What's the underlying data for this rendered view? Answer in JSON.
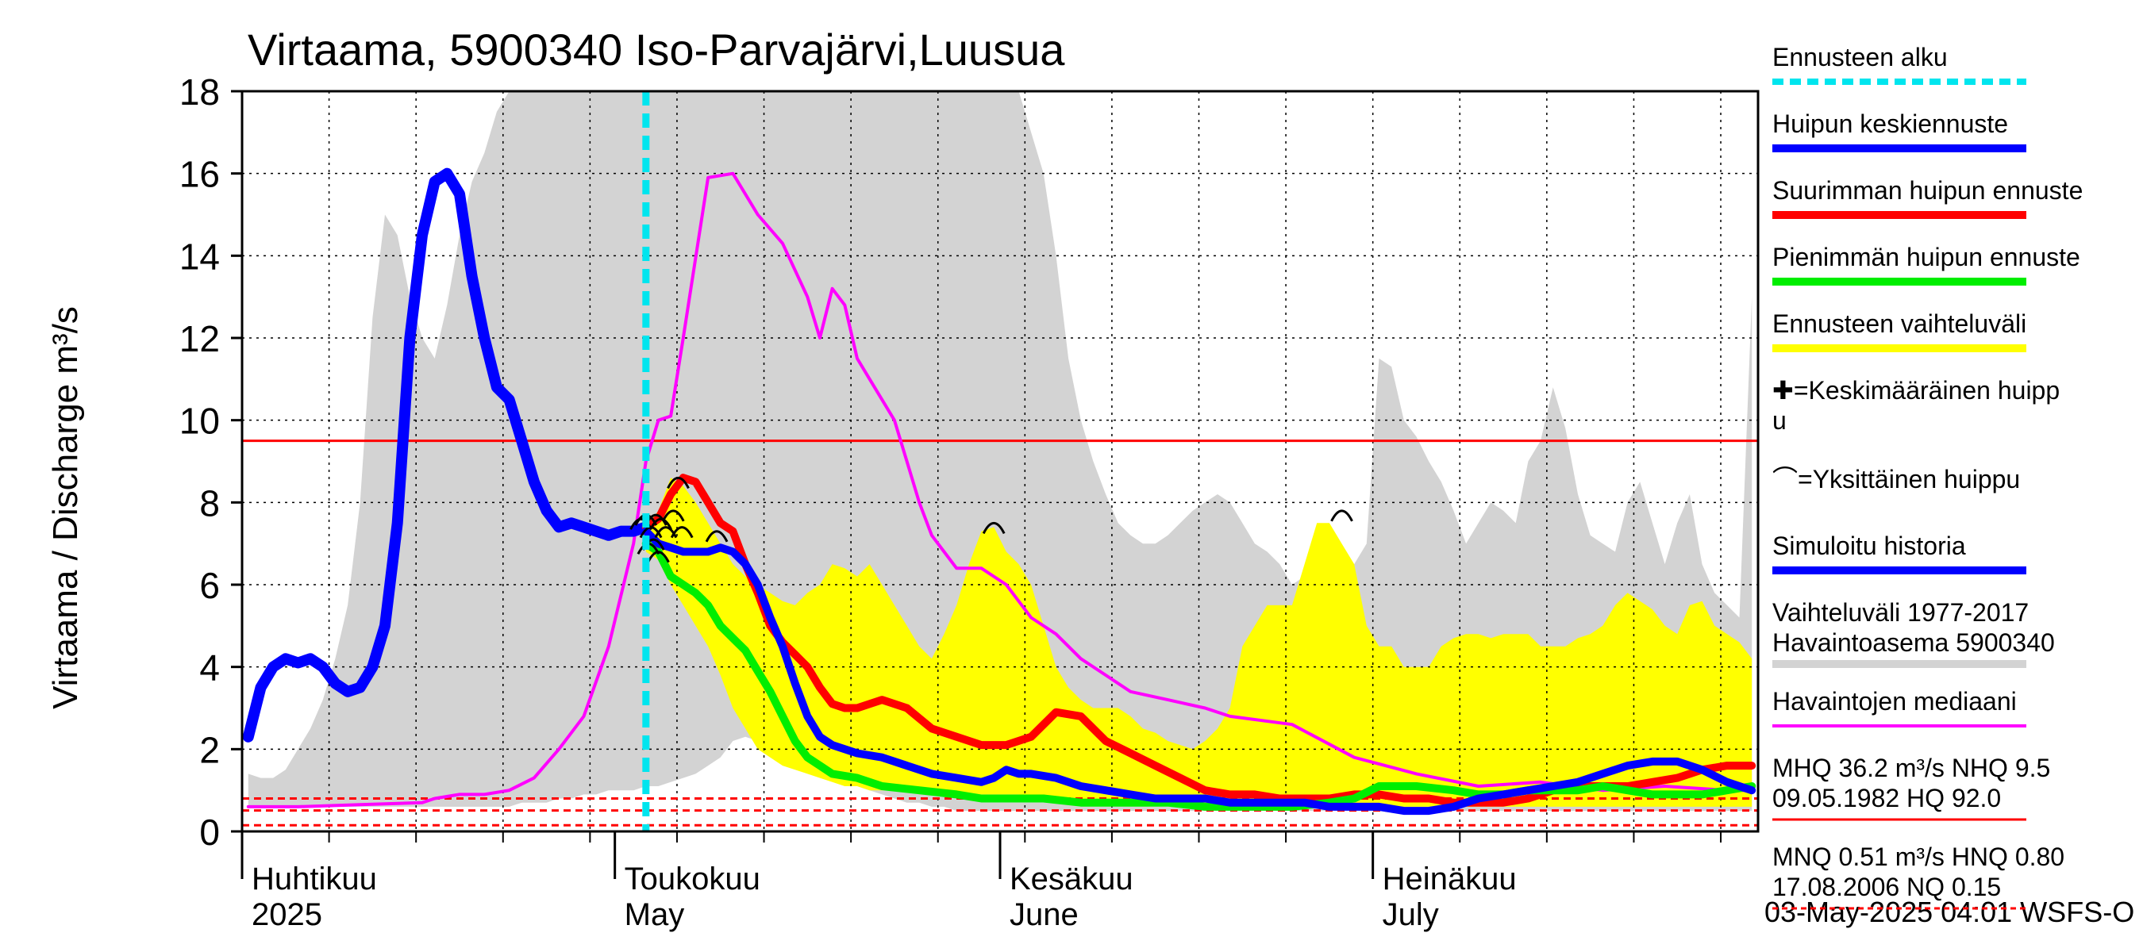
{
  "chart_data": {
    "type": "line",
    "title": "Virtaama, 5900340 Iso-Parvajärvi,Luusua",
    "ylabel": "Virtaama / Discharge    m³/s",
    "ylim": [
      0,
      18
    ],
    "yticks": [
      0,
      2,
      4,
      6,
      8,
      10,
      12,
      14,
      16,
      18
    ],
    "xlim": [
      "2025-04-01",
      "2025-07-31"
    ],
    "x_month_labels": [
      {
        "date": "2025-04-01",
        "line1": "Huhtikuu",
        "line2": "2025"
      },
      {
        "date": "2025-05-01",
        "line1": "Toukokuu",
        "line2": "May"
      },
      {
        "date": "2025-06-01",
        "line1": "Kesäkuu",
        "line2": "June"
      },
      {
        "date": "2025-07-01",
        "line1": "Heinäkuu",
        "line2": "July"
      }
    ],
    "forecast_start": "2025-05-03",
    "timestamp": "03-May-2025 04:01 WSFS-O",
    "legend": [
      {
        "label": "Ennusteen alku",
        "color": "#00e5ee",
        "style": "dashed"
      },
      {
        "label": "Huipun keskiennuste",
        "color": "#0000ff",
        "style": "thick"
      },
      {
        "label": "Suurimman huipun ennuste",
        "color": "#ff0000",
        "style": "thick"
      },
      {
        "label": "Pienimmän huipun ennuste",
        "color": "#00ee00",
        "style": "thick"
      },
      {
        "label": "Ennusteen vaihteluväli",
        "color": "#ffff00",
        "style": "thick"
      },
      {
        "label": "✚=Keskimääräinen huipp",
        "label2": "u",
        "color": "#000000",
        "style": "none"
      },
      {
        "label": "⌒=Yksittäinen huippu",
        "color": "#000000",
        "style": "none"
      },
      {
        "label": "Simuloitu historia",
        "color": "#0000ff",
        "style": "thick"
      },
      {
        "label": "Vaihteluväli 1977-2017",
        "label2": " Havaintoasema 5900340",
        "color": "#d3d3d3",
        "style": "thick"
      },
      {
        "label": "Havaintojen mediaani",
        "color": "#ff00ff",
        "style": "medium"
      },
      {
        "label": "MHQ 36.2 m³/s NHQ  9.5",
        "label2": "09.05.1982 HQ 92.0",
        "color": "#ff0000",
        "style": "thin"
      },
      {
        "label": "MNQ 0.51 m³/s HNQ 0.80",
        "label2": "17.08.2006 NQ 0.15",
        "color": "#ff0000",
        "style": "dotted"
      }
    ],
    "reference_lines": [
      {
        "name": "NHQ",
        "y": 9.5,
        "color": "#ff0000",
        "style": "solid"
      },
      {
        "name": "HNQ",
        "y": 0.8,
        "color": "#ff0000",
        "style": "dashed"
      },
      {
        "name": "MNQ",
        "y": 0.51,
        "color": "#ff0000",
        "style": "dashed"
      },
      {
        "name": "NQ",
        "y": 0.15,
        "color": "#ff0000",
        "style": "dashed"
      }
    ],
    "grey_band": {
      "x": [
        1,
        2,
        3,
        4,
        5,
        6,
        7,
        8,
        9,
        10,
        11,
        12,
        13,
        14,
        15,
        16,
        17,
        18,
        19,
        20,
        21,
        22,
        23,
        24,
        25,
        26,
        27,
        28,
        29,
        30,
        31,
        32,
        33,
        34,
        35,
        36,
        37,
        38,
        39,
        40,
        41,
        42,
        43,
        44,
        45,
        46,
        47,
        48,
        49,
        50,
        51,
        52,
        53,
        54,
        55,
        56,
        57,
        58,
        59,
        60,
        61,
        62,
        63,
        64,
        65,
        66,
        67,
        68,
        69,
        70,
        71,
        72,
        73,
        74,
        75,
        76,
        77,
        78,
        79,
        80,
        81,
        82,
        83,
        84,
        85,
        86,
        87,
        88,
        89,
        90,
        91,
        92,
        93,
        94,
        95,
        96,
        97,
        98,
        99,
        100,
        101,
        102,
        103,
        104,
        105,
        106,
        107,
        108,
        109,
        110,
        111,
        112,
        113,
        114,
        115,
        116,
        117,
        118,
        119,
        120,
        121,
        122
      ],
      "upper": [
        1.4,
        1.3,
        1.3,
        1.5,
        2.0,
        2.5,
        3.2,
        4.2,
        5.5,
        8.0,
        12.5,
        15.0,
        14.5,
        13.0,
        12.0,
        11.5,
        12.8,
        14.5,
        15.8,
        16.5,
        17.5,
        18,
        18,
        18,
        18,
        18,
        18,
        18,
        18,
        18,
        18,
        18,
        18,
        18,
        18,
        18,
        18,
        18,
        18,
        18,
        18,
        18,
        18,
        18,
        18,
        18,
        18,
        18,
        18,
        18,
        18,
        18,
        18,
        18,
        18,
        18,
        18,
        18,
        18,
        18,
        18,
        18,
        18,
        17,
        16,
        14,
        11.5,
        10.0,
        9.0,
        8.2,
        7.5,
        7.2,
        7.0,
        7.0,
        7.2,
        7.5,
        7.8,
        8.0,
        8.2,
        8.0,
        7.5,
        7.0,
        6.8,
        6.5,
        6.0,
        6.2,
        5.8,
        6.0,
        6.2,
        6.5,
        7.0,
        11.5,
        11.3,
        10.0,
        9.6,
        9.0,
        8.5,
        7.8,
        7.0,
        7.5,
        8.0,
        7.8,
        7.5,
        9.0,
        9.5,
        10.8,
        9.8,
        8.2,
        7.2,
        7.0,
        6.8,
        8.0,
        8.5,
        7.5,
        6.5,
        7.5,
        8.2,
        6.5,
        5.8,
        5.5,
        5.2,
        13.0
      ],
      "lower": [
        0.6,
        0.6,
        0.6,
        0.6,
        0.6,
        0.6,
        0.6,
        0.6,
        0.6,
        0.6,
        0.6,
        0.6,
        0.6,
        0.6,
        0.6,
        0.6,
        0.6,
        0.6,
        0.6,
        0.6,
        0.6,
        0.6,
        0.7,
        0.7,
        0.7,
        0.8,
        0.8,
        0.9,
        0.9,
        1.0,
        1.0,
        1.0,
        1.1,
        1.1,
        1.2,
        1.3,
        1.4,
        1.6,
        1.8,
        2.2,
        2.3,
        2.2,
        2.0,
        1.8,
        1.6,
        1.5,
        1.4,
        1.3,
        1.2,
        1.1,
        1.0,
        0.9,
        0.8,
        0.7,
        0.7,
        0.6,
        0.6,
        0.5,
        0.5,
        0.5,
        0.5,
        0.5,
        0.5,
        0.5,
        0.5,
        0.5,
        0.5,
        0.5,
        0.5,
        0.5,
        0.5,
        0.5,
        0.5,
        0.5,
        0.5,
        0.5,
        0.5,
        0.5,
        0.5,
        0.5,
        0.5,
        0.5,
        0.5,
        0.5,
        0.5,
        0.5,
        0.5,
        0.5,
        0.5,
        0.5,
        0.5,
        0.5,
        0.5,
        0.5,
        0.5,
        0.5,
        0.5,
        0.5,
        0.5,
        0.5,
        0.5,
        0.5,
        0.5,
        0.5,
        0.5,
        0.5,
        0.5,
        0.5,
        0.5,
        0.5,
        0.5,
        0.5,
        0.5,
        0.5,
        0.5,
        0.5,
        0.5,
        0.5,
        0.5,
        0.5,
        0.5,
        0.5
      ]
    },
    "yellow_band": {
      "x": [
        33,
        34,
        35,
        36,
        37,
        38,
        39,
        40,
        41,
        42,
        43,
        44,
        45,
        46,
        47,
        48,
        49,
        50,
        51,
        52,
        53,
        54,
        55,
        56,
        57,
        58,
        59,
        60,
        61,
        62,
        63,
        64,
        65,
        66,
        67,
        68,
        69,
        70,
        71,
        72,
        73,
        74,
        75,
        76,
        77,
        78,
        79,
        80,
        81,
        82,
        83,
        84,
        85,
        86,
        87,
        88,
        89,
        90,
        91,
        92,
        93,
        94,
        95,
        96,
        97,
        98,
        99,
        100,
        101,
        102,
        103,
        104,
        105,
        106,
        107,
        108,
        109,
        110,
        111,
        112,
        113,
        114,
        115,
        116,
        117,
        118,
        119,
        120,
        121,
        122
      ],
      "upper": [
        7.4,
        7.8,
        8.6,
        8.4,
        8.0,
        7.5,
        7.0,
        6.5,
        6.2,
        6.0,
        5.8,
        5.6,
        5.5,
        5.8,
        6.0,
        6.5,
        6.4,
        6.2,
        6.5,
        6.0,
        5.5,
        5.0,
        4.5,
        4.2,
        4.8,
        5.5,
        6.5,
        7.3,
        7.4,
        6.8,
        6.5,
        6.0,
        5.0,
        4.0,
        3.5,
        3.2,
        3.0,
        3.0,
        3.0,
        2.8,
        2.5,
        2.4,
        2.2,
        2.1,
        2.0,
        2.2,
        2.5,
        3.0,
        4.5,
        5.0,
        5.5,
        5.5,
        5.5,
        6.5,
        7.5,
        7.5,
        7.0,
        6.5,
        5.0,
        4.5,
        4.5,
        4.0,
        4.0,
        4.0,
        4.5,
        4.7,
        4.8,
        4.8,
        4.7,
        4.8,
        4.8,
        4.8,
        4.5,
        4.5,
        4.5,
        4.7,
        4.8,
        5.0,
        5.5,
        5.8,
        5.6,
        5.4,
        5.0,
        4.8,
        5.5,
        5.6,
        5.0,
        4.8,
        4.6,
        4.2
      ],
      "lower": [
        6.8,
        6.6,
        6.0,
        5.5,
        5.0,
        4.5,
        3.8,
        3.0,
        2.5,
        2.0,
        1.8,
        1.6,
        1.5,
        1.4,
        1.3,
        1.2,
        1.1,
        1.1,
        1.0,
        1.0,
        1.0,
        1.0,
        0.9,
        0.9,
        0.9,
        0.9,
        0.9,
        0.9,
        0.9,
        0.9,
        0.9,
        0.8,
        0.8,
        0.8,
        0.8,
        0.8,
        0.7,
        0.7,
        0.7,
        0.7,
        0.7,
        0.7,
        0.7,
        0.6,
        0.6,
        0.6,
        0.6,
        0.6,
        0.6,
        0.6,
        0.6,
        0.6,
        0.6,
        0.6,
        0.6,
        0.6,
        0.6,
        0.6,
        0.6,
        0.6,
        0.6,
        0.6,
        0.6,
        0.6,
        0.6,
        0.6,
        0.6,
        0.6,
        0.6,
        0.6,
        0.6,
        0.6,
        0.6,
        0.6,
        0.6,
        0.6,
        0.6,
        0.6,
        0.6,
        0.6,
        0.6,
        0.6,
        0.6,
        0.6,
        0.6,
        0.6,
        0.6,
        0.6,
        0.6,
        0.6
      ]
    },
    "series": [
      {
        "name": "Havaintojen mediaani",
        "color": "#ff00ff",
        "width": 4,
        "x": [
          1,
          5,
          10,
          15,
          16,
          18,
          20,
          22,
          24,
          26,
          28,
          30,
          32,
          33,
          34,
          35,
          36,
          38,
          40,
          42,
          44,
          46,
          47,
          48,
          49,
          50,
          51,
          52,
          53,
          54,
          55,
          56,
          57,
          58,
          60,
          62,
          64,
          66,
          68,
          70,
          72,
          75,
          78,
          80,
          85,
          90,
          95,
          100,
          105,
          110,
          115,
          120,
          122
        ],
        "y": [
          0.6,
          0.6,
          0.65,
          0.7,
          0.8,
          0.9,
          0.9,
          1.0,
          1.3,
          2.0,
          2.8,
          4.5,
          7.0,
          9.0,
          10.0,
          10.1,
          12.0,
          15.9,
          16.0,
          15.0,
          14.3,
          13.0,
          12.0,
          13.2,
          12.8,
          11.5,
          11.0,
          10.5,
          10.0,
          9.0,
          8.0,
          7.2,
          6.8,
          6.4,
          6.4,
          6.0,
          5.2,
          4.8,
          4.2,
          3.8,
          3.4,
          3.2,
          3.0,
          2.8,
          2.6,
          1.8,
          1.4,
          1.1,
          1.2,
          1.0,
          1.1,
          1.0,
          1.0
        ]
      },
      {
        "name": "Simuloitu historia",
        "color": "#0000ff",
        "width": 14,
        "x": [
          1,
          2,
          3,
          4,
          5,
          6,
          7,
          8,
          9,
          10,
          11,
          12,
          13,
          14,
          15,
          16,
          17,
          18,
          19,
          20,
          21,
          22,
          23,
          24,
          25,
          26,
          27,
          28,
          29,
          30,
          31,
          32,
          33
        ],
        "y": [
          2.3,
          3.5,
          4.0,
          4.2,
          4.1,
          4.2,
          4.0,
          3.6,
          3.4,
          3.5,
          4.0,
          5.0,
          7.5,
          12.0,
          14.5,
          15.8,
          16.0,
          15.5,
          13.5,
          12.0,
          10.8,
          10.5,
          9.5,
          8.5,
          7.8,
          7.4,
          7.5,
          7.4,
          7.3,
          7.2,
          7.3,
          7.3,
          7.4
        ]
      },
      {
        "name": "Suurimman huipun ennuste",
        "color": "#ff0000",
        "width": 10,
        "x": [
          33,
          34,
          35,
          36,
          37,
          38,
          39,
          40,
          41,
          42,
          43,
          44,
          45,
          46,
          47,
          48,
          49,
          50,
          52,
          54,
          56,
          58,
          60,
          62,
          64,
          66,
          68,
          70,
          72,
          74,
          76,
          78,
          80,
          82,
          84,
          86,
          88,
          90,
          92,
          94,
          96,
          98,
          100,
          102,
          104,
          106,
          108,
          110,
          112,
          114,
          116,
          118,
          120,
          122
        ],
        "y": [
          7.4,
          7.6,
          8.2,
          8.6,
          8.5,
          8.0,
          7.5,
          7.3,
          6.5,
          5.8,
          5.0,
          4.6,
          4.3,
          4.0,
          3.5,
          3.1,
          3.0,
          3.0,
          3.2,
          3.0,
          2.5,
          2.3,
          2.1,
          2.1,
          2.3,
          2.9,
          2.8,
          2.2,
          1.9,
          1.6,
          1.3,
          1.0,
          0.9,
          0.9,
          0.8,
          0.8,
          0.8,
          0.9,
          0.9,
          0.8,
          0.8,
          0.7,
          0.7,
          0.7,
          0.8,
          1.0,
          1.1,
          1.1,
          1.1,
          1.2,
          1.3,
          1.5,
          1.6,
          1.6
        ]
      },
      {
        "name": "Pienimmän huipun ennuste",
        "color": "#00ee00",
        "width": 10,
        "x": [
          33,
          34,
          35,
          36,
          37,
          38,
          39,
          40,
          41,
          42,
          43,
          44,
          45,
          46,
          47,
          48,
          50,
          52,
          55,
          58,
          60,
          62,
          65,
          68,
          70,
          72,
          75,
          78,
          80,
          82,
          85,
          88,
          90,
          92,
          95,
          98,
          100,
          102,
          104,
          106,
          108,
          110,
          112,
          114,
          116,
          118,
          120,
          122
        ],
        "y": [
          7.0,
          6.8,
          6.2,
          6.0,
          5.8,
          5.5,
          5.0,
          4.7,
          4.4,
          3.9,
          3.4,
          2.8,
          2.2,
          1.8,
          1.6,
          1.4,
          1.3,
          1.1,
          1.0,
          0.9,
          0.8,
          0.8,
          0.8,
          0.7,
          0.7,
          0.7,
          0.7,
          0.6,
          0.6,
          0.6,
          0.6,
          0.7,
          0.8,
          1.1,
          1.1,
          1.0,
          0.9,
          0.9,
          1.0,
          1.0,
          1.0,
          1.1,
          1.0,
          0.9,
          0.9,
          0.9,
          1.0,
          1.1
        ]
      },
      {
        "name": "Huipun keskiennuste",
        "color": "#0000ff",
        "width": 10,
        "x": [
          33,
          34,
          35,
          36,
          37,
          38,
          39,
          40,
          41,
          42,
          43,
          44,
          45,
          46,
          47,
          48,
          50,
          52,
          54,
          56,
          58,
          60,
          61,
          62,
          63,
          64,
          66,
          68,
          70,
          72,
          74,
          76,
          78,
          80,
          82,
          84,
          86,
          88,
          90,
          92,
          94,
          96,
          98,
          100,
          102,
          104,
          106,
          108,
          110,
          112,
          114,
          116,
          118,
          120,
          122
        ],
        "y": [
          7.3,
          7.0,
          6.9,
          6.8,
          6.8,
          6.8,
          6.9,
          6.8,
          6.5,
          6.0,
          5.2,
          4.5,
          3.6,
          2.8,
          2.3,
          2.1,
          1.9,
          1.8,
          1.6,
          1.4,
          1.3,
          1.2,
          1.3,
          1.5,
          1.4,
          1.4,
          1.3,
          1.1,
          1.0,
          0.9,
          0.8,
          0.8,
          0.8,
          0.7,
          0.7,
          0.7,
          0.7,
          0.6,
          0.6,
          0.6,
          0.5,
          0.5,
          0.6,
          0.8,
          0.9,
          1.0,
          1.1,
          1.2,
          1.4,
          1.6,
          1.7,
          1.7,
          1.5,
          1.2,
          1.0
        ]
      }
    ],
    "individual_peaks": [
      {
        "x": 32.6,
        "y": 7.5
      },
      {
        "x": 33.0,
        "y": 7.6
      },
      {
        "x": 33.4,
        "y": 7.3
      },
      {
        "x": 33.8,
        "y": 7.6
      },
      {
        "x": 34.2,
        "y": 7.5
      },
      {
        "x": 34.6,
        "y": 7.3
      },
      {
        "x": 35.2,
        "y": 7.7
      },
      {
        "x": 35.6,
        "y": 8.5
      },
      {
        "x": 35.9,
        "y": 7.3
      },
      {
        "x": 33.2,
        "y": 6.9
      },
      {
        "x": 33.6,
        "y": 7.0
      },
      {
        "x": 34.0,
        "y": 6.7
      },
      {
        "x": 38.7,
        "y": 7.2
      },
      {
        "x": 61.0,
        "y": 7.4
      },
      {
        "x": 89.0,
        "y": 7.7
      }
    ]
  }
}
